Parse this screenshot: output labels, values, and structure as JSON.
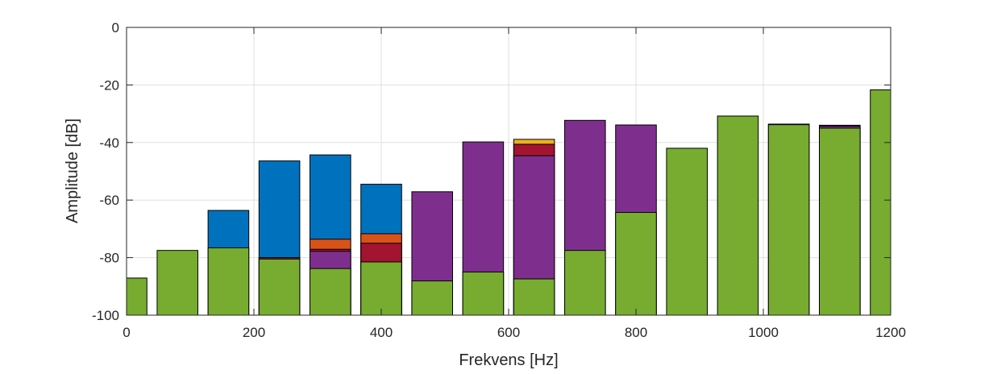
{
  "chart_data": {
    "type": "bar",
    "stacked": "overlapping",
    "title": "",
    "xlabel": "Frekvens [Hz]",
    "ylabel": "Amplitude [dB]",
    "xlim": [
      0,
      1200
    ],
    "ylim": [
      -100,
      0
    ],
    "xticks": [
      "0",
      "200",
      "400",
      "600",
      "800",
      "1000",
      "1200"
    ],
    "yticks": [
      "0",
      "-20",
      "-40",
      "-60",
      "-80",
      "-100"
    ],
    "grid": true,
    "legend": "none",
    "bar_width_hz": 64,
    "series": [
      {
        "color": "#0072bd",
        "points": [
          {
            "x": 160,
            "y": -63.6
          },
          {
            "x": 240,
            "y": -46.4
          },
          {
            "x": 320,
            "y": -44.3
          },
          {
            "x": 400,
            "y": -54.5
          }
        ]
      },
      {
        "color": "#d95319",
        "points": [
          {
            "x": 320,
            "y": -73.6
          },
          {
            "x": 400,
            "y": -71.7
          }
        ]
      },
      {
        "color": "#edb120",
        "points": [
          {
            "x": 640,
            "y": -38.9
          }
        ]
      },
      {
        "color": "#a2142f",
        "points": [
          {
            "x": 240,
            "y": -80.0
          },
          {
            "x": 320,
            "y": -77.1
          },
          {
            "x": 400,
            "y": -75.0
          },
          {
            "x": 640,
            "y": -40.6
          },
          {
            "x": 1040,
            "y": -33.6
          },
          {
            "x": 1120,
            "y": -34.0
          }
        ]
      },
      {
        "color": "#7e2f8e",
        "points": [
          {
            "x": 320,
            "y": -77.8
          },
          {
            "x": 480,
            "y": -57.1
          },
          {
            "x": 560,
            "y": -39.8
          },
          {
            "x": 640,
            "y": -44.6
          },
          {
            "x": 720,
            "y": -32.3
          },
          {
            "x": 800,
            "y": -33.9
          },
          {
            "x": 1120,
            "y": -34.3
          }
        ]
      },
      {
        "color": "#77ac30",
        "points": [
          {
            "x": 0,
            "y": -87.1
          },
          {
            "x": 80,
            "y": -77.5
          },
          {
            "x": 160,
            "y": -76.6
          },
          {
            "x": 240,
            "y": -80.5
          },
          {
            "x": 320,
            "y": -83.8
          },
          {
            "x": 400,
            "y": -81.5
          },
          {
            "x": 480,
            "y": -88.1
          },
          {
            "x": 560,
            "y": -85.0
          },
          {
            "x": 640,
            "y": -87.4
          },
          {
            "x": 720,
            "y": -77.5
          },
          {
            "x": 800,
            "y": -64.3
          },
          {
            "x": 880,
            "y": -42.0
          },
          {
            "x": 960,
            "y": -30.8
          },
          {
            "x": 1040,
            "y": -33.8
          },
          {
            "x": 1120,
            "y": -35.0
          },
          {
            "x": 1200,
            "y": -21.7
          }
        ]
      }
    ]
  }
}
